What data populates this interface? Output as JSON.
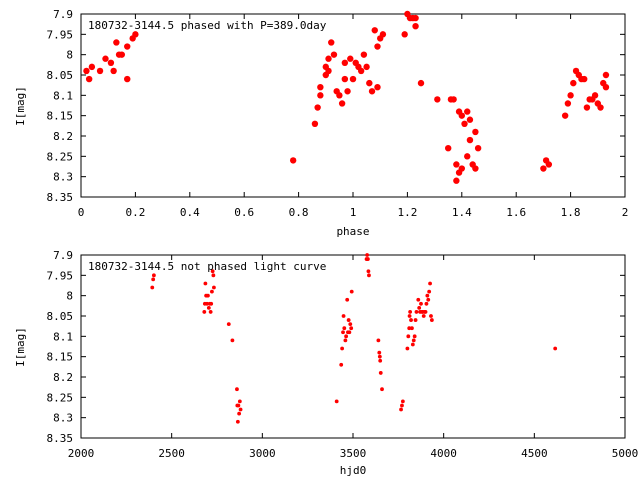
{
  "chart_data": [
    {
      "type": "scatter",
      "title": "180732-3144.5 phased with P=389.0day",
      "xlabel": "phase",
      "ylabel": "I[mag]",
      "xlim": [
        0,
        2
      ],
      "ylim": [
        7.9,
        8.35
      ],
      "y_inverted": true,
      "grid": false,
      "marker": "filled-circle-large",
      "color": "#ff0000",
      "xticks": [
        "0",
        "0.2",
        "0.4",
        "0.6",
        "0.8",
        "1",
        "1.2",
        "1.4",
        "1.6",
        "1.8",
        "2"
      ],
      "yticks": [
        "7.9",
        "7.95",
        "8",
        "8.05",
        "8.1",
        "8.15",
        "8.2",
        "8.25",
        "8.3",
        "8.35"
      ],
      "points": [
        [
          0.02,
          8.04
        ],
        [
          0.03,
          8.06
        ],
        [
          0.04,
          8.03
        ],
        [
          0.07,
          8.04
        ],
        [
          0.09,
          8.01
        ],
        [
          0.11,
          8.02
        ],
        [
          0.12,
          8.04
        ],
        [
          0.13,
          7.97
        ],
        [
          0.14,
          8.0
        ],
        [
          0.15,
          8.0
        ],
        [
          0.17,
          8.06
        ],
        [
          0.17,
          7.98
        ],
        [
          0.19,
          7.96
        ],
        [
          0.2,
          7.95
        ],
        [
          0.78,
          8.26
        ],
        [
          0.86,
          8.17
        ],
        [
          0.87,
          8.13
        ],
        [
          0.88,
          8.1
        ],
        [
          0.88,
          8.08
        ],
        [
          0.9,
          8.05
        ],
        [
          0.9,
          8.03
        ],
        [
          0.91,
          8.04
        ],
        [
          0.91,
          8.01
        ],
        [
          0.92,
          7.97
        ],
        [
          0.93,
          8.0
        ],
        [
          0.94,
          8.09
        ],
        [
          0.95,
          8.1
        ],
        [
          0.96,
          8.12
        ],
        [
          0.97,
          8.06
        ],
        [
          0.97,
          8.02
        ],
        [
          0.98,
          8.09
        ],
        [
          0.99,
          8.01
        ],
        [
          1.0,
          8.06
        ],
        [
          1.01,
          8.02
        ],
        [
          1.02,
          8.03
        ],
        [
          1.03,
          8.04
        ],
        [
          1.04,
          8.0
        ],
        [
          1.05,
          8.03
        ],
        [
          1.06,
          8.07
        ],
        [
          1.07,
          8.09
        ],
        [
          1.08,
          7.94
        ],
        [
          1.09,
          7.98
        ],
        [
          1.09,
          8.08
        ],
        [
          1.1,
          7.96
        ],
        [
          1.11,
          7.95
        ],
        [
          1.19,
          7.95
        ],
        [
          1.2,
          7.9
        ],
        [
          1.21,
          7.91
        ],
        [
          1.22,
          7.91
        ],
        [
          1.23,
          7.91
        ],
        [
          1.23,
          7.93
        ],
        [
          1.25,
          8.07
        ],
        [
          1.31,
          8.11
        ],
        [
          1.35,
          8.23
        ],
        [
          1.36,
          8.11
        ],
        [
          1.37,
          8.11
        ],
        [
          1.38,
          8.27
        ],
        [
          1.38,
          8.31
        ],
        [
          1.39,
          8.29
        ],
        [
          1.39,
          8.14
        ],
        [
          1.4,
          8.28
        ],
        [
          1.4,
          8.15
        ],
        [
          1.41,
          8.17
        ],
        [
          1.42,
          8.14
        ],
        [
          1.42,
          8.25
        ],
        [
          1.43,
          8.16
        ],
        [
          1.43,
          8.21
        ],
        [
          1.44,
          8.27
        ],
        [
          1.45,
          8.28
        ],
        [
          1.46,
          8.23
        ],
        [
          1.45,
          8.19
        ],
        [
          1.7,
          8.28
        ],
        [
          1.71,
          8.26
        ],
        [
          1.72,
          8.27
        ],
        [
          1.78,
          8.15
        ],
        [
          1.79,
          8.12
        ],
        [
          1.8,
          8.1
        ],
        [
          1.81,
          8.07
        ],
        [
          1.82,
          8.04
        ],
        [
          1.83,
          8.05
        ],
        [
          1.84,
          8.06
        ],
        [
          1.85,
          8.06
        ],
        [
          1.86,
          8.13
        ],
        [
          1.87,
          8.11
        ],
        [
          1.88,
          8.11
        ],
        [
          1.89,
          8.1
        ],
        [
          1.9,
          8.12
        ],
        [
          1.91,
          8.13
        ],
        [
          1.92,
          8.07
        ],
        [
          1.93,
          8.08
        ],
        [
          1.93,
          8.05
        ]
      ]
    },
    {
      "type": "scatter",
      "title": "180732-3144.5 not phased light curve",
      "xlabel": "hjd0",
      "ylabel": "I[mag]",
      "xlim": [
        2000,
        5000
      ],
      "ylim": [
        7.9,
        8.35
      ],
      "y_inverted": true,
      "grid": false,
      "marker": "filled-circle-small",
      "color": "#ff0000",
      "xticks": [
        "2000",
        "2500",
        "3000",
        "3500",
        "4000",
        "4500",
        "5000"
      ],
      "yticks": [
        "7.9",
        "7.95",
        "8",
        "8.05",
        "8.1",
        "8.15",
        "8.2",
        "8.25",
        "8.3",
        "8.35"
      ],
      "points": [
        [
          2393,
          7.98
        ],
        [
          2398,
          7.96
        ],
        [
          2402,
          7.95
        ],
        [
          2680,
          8.04
        ],
        [
          2683,
          8.02
        ],
        [
          2686,
          7.97
        ],
        [
          2690,
          8.0
        ],
        [
          2695,
          8.02
        ],
        [
          2700,
          8.0
        ],
        [
          2705,
          8.03
        ],
        [
          2710,
          8.02
        ],
        [
          2715,
          8.04
        ],
        [
          2718,
          8.02
        ],
        [
          2722,
          7.99
        ],
        [
          2726,
          7.94
        ],
        [
          2730,
          7.95
        ],
        [
          2733,
          7.98
        ],
        [
          2815,
          8.07
        ],
        [
          2835,
          8.11
        ],
        [
          2860,
          8.23
        ],
        [
          2862,
          8.27
        ],
        [
          2865,
          8.31
        ],
        [
          2868,
          8.27
        ],
        [
          2872,
          8.29
        ],
        [
          2876,
          8.26
        ],
        [
          2880,
          8.28
        ],
        [
          3410,
          8.26
        ],
        [
          3435,
          8.17
        ],
        [
          3440,
          8.13
        ],
        [
          3445,
          8.09
        ],
        [
          3448,
          8.05
        ],
        [
          3452,
          8.08
        ],
        [
          3458,
          8.11
        ],
        [
          3462,
          8.1
        ],
        [
          3468,
          8.01
        ],
        [
          3472,
          8.09
        ],
        [
          3476,
          8.06
        ],
        [
          3480,
          8.09
        ],
        [
          3485,
          8.07
        ],
        [
          3490,
          8.08
        ],
        [
          3493,
          7.99
        ],
        [
          3575,
          7.91
        ],
        [
          3578,
          7.9
        ],
        [
          3582,
          7.91
        ],
        [
          3585,
          7.94
        ],
        [
          3588,
          7.95
        ],
        [
          3640,
          8.11
        ],
        [
          3645,
          8.14
        ],
        [
          3648,
          8.15
        ],
        [
          3650,
          8.16
        ],
        [
          3653,
          8.19
        ],
        [
          3660,
          8.23
        ],
        [
          3765,
          8.28
        ],
        [
          3770,
          8.27
        ],
        [
          3775,
          8.26
        ],
        [
          3800,
          8.13
        ],
        [
          3805,
          8.1
        ],
        [
          3810,
          8.08
        ],
        [
          3812,
          8.05
        ],
        [
          3815,
          8.04
        ],
        [
          3820,
          8.06
        ],
        [
          3825,
          8.08
        ],
        [
          3830,
          8.12
        ],
        [
          3835,
          8.11
        ],
        [
          3840,
          8.1
        ],
        [
          3845,
          8.06
        ],
        [
          3850,
          8.04
        ],
        [
          3860,
          8.01
        ],
        [
          3865,
          8.03
        ],
        [
          3870,
          8.04
        ],
        [
          3875,
          8.02
        ],
        [
          3880,
          8.04
        ],
        [
          3885,
          8.04
        ],
        [
          3890,
          8.05
        ],
        [
          3895,
          8.04
        ],
        [
          3900,
          8.04
        ],
        [
          3905,
          8.02
        ],
        [
          3910,
          8.0
        ],
        [
          3915,
          8.01
        ],
        [
          3920,
          7.99
        ],
        [
          3925,
          7.97
        ],
        [
          3930,
          8.05
        ],
        [
          3935,
          8.06
        ],
        [
          4615,
          8.13
        ]
      ]
    }
  ]
}
